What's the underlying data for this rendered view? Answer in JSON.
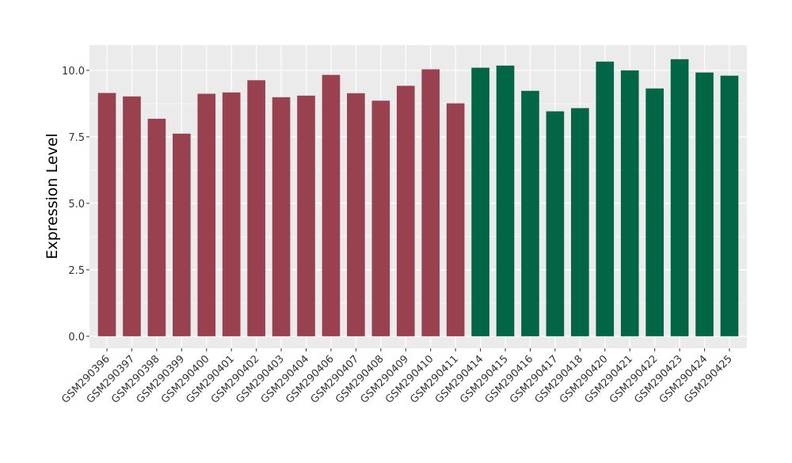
{
  "chart_data": {
    "type": "bar",
    "title": "",
    "xlabel": "",
    "ylabel": "Expression Level",
    "ylim": [
      -0.45,
      10.95
    ],
    "yticks": [
      0.0,
      2.5,
      5.0,
      7.5,
      10.0
    ],
    "ytick_labels": [
      "0.0",
      "2.5",
      "5.0",
      "7.5",
      "10.0"
    ],
    "grid": true,
    "legend": "none",
    "categories": [
      "GSM290396",
      "GSM290397",
      "GSM290398",
      "GSM290399",
      "GSM290400",
      "GSM290401",
      "GSM290402",
      "GSM290403",
      "GSM290404",
      "GSM290406",
      "GSM290407",
      "GSM290408",
      "GSM290409",
      "GSM290410",
      "GSM290411",
      "GSM290414",
      "GSM290415",
      "GSM290416",
      "GSM290417",
      "GSM290418",
      "GSM290420",
      "GSM290421",
      "GSM290422",
      "GSM290423",
      "GSM290424",
      "GSM290425"
    ],
    "values": [
      9.15,
      9.02,
      8.18,
      7.62,
      9.12,
      9.17,
      9.63,
      8.99,
      9.05,
      9.83,
      9.14,
      8.86,
      9.42,
      10.04,
      8.76,
      10.1,
      10.18,
      9.23,
      8.46,
      8.58,
      10.33,
      10.0,
      9.32,
      10.42,
      9.92,
      9.8
    ],
    "bar_colors": [
      "#9a4150",
      "#9a4150",
      "#9a4150",
      "#9a4150",
      "#9a4150",
      "#9a4150",
      "#9a4150",
      "#9a4150",
      "#9a4150",
      "#9a4150",
      "#9a4150",
      "#9a4150",
      "#9a4150",
      "#9a4150",
      "#9a4150",
      "#006646",
      "#006646",
      "#006646",
      "#006646",
      "#006646",
      "#006646",
      "#006646",
      "#006646",
      "#006646",
      "#006646",
      "#006646"
    ],
    "panel_background": "#ebebeb",
    "grid_color": "#ffffff"
  }
}
